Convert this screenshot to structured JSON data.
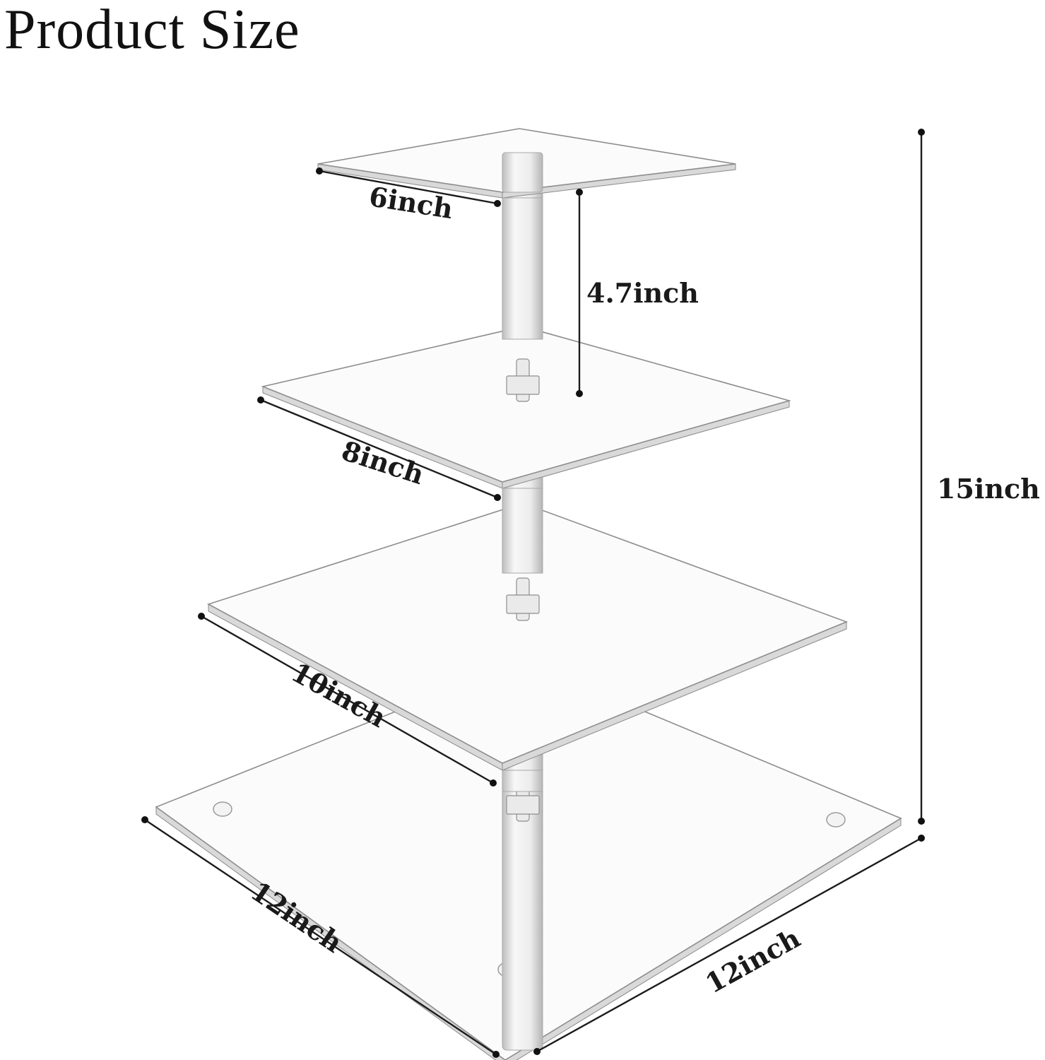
{
  "title": "Product Size",
  "dimensions": {
    "top_tier_width": "6inch",
    "tier_spacing": "4.7inch",
    "second_tier_width": "8inch",
    "third_tier_width": "10inch",
    "base_width_left": "12inch",
    "base_width_right": "12inch",
    "total_height": "15inch"
  },
  "colors": {
    "background": "#ffffff",
    "text": "#1a1a1a",
    "acrylic_edge": "#8d8d8d"
  }
}
